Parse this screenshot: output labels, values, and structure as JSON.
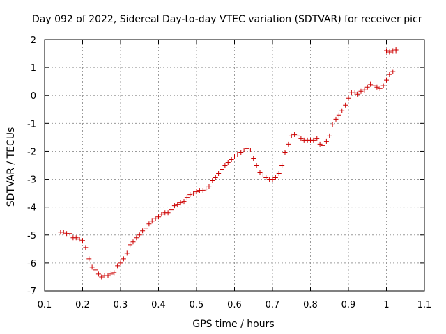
{
  "chart_data": {
    "type": "scatter",
    "title": "Day 092 of 2022, Sidereal Day-to-day VTEC variation (SDTVAR) for receiver picr",
    "xlabel": "GPS time / hours",
    "ylabel": "SDTVAR / TECUs",
    "xlim": [
      0.1,
      1.1
    ],
    "ylim": [
      -7,
      2
    ],
    "xticks": [
      "0.1",
      "0.2",
      "0.3",
      "0.4",
      "0.5",
      "0.6",
      "0.7",
      "0.8",
      "0.9",
      "1",
      "1.1"
    ],
    "yticks": [
      "2",
      "1",
      "0",
      "-1",
      "-2",
      "-3",
      "-4",
      "-5",
      "-6",
      "-7"
    ],
    "grid": true,
    "marker": "+",
    "series_color": "#cc0000",
    "x": [
      0.142,
      0.15,
      0.158,
      0.167,
      0.175,
      0.183,
      0.192,
      0.2,
      0.208,
      0.217,
      0.225,
      0.233,
      0.242,
      0.25,
      0.258,
      0.267,
      0.275,
      0.283,
      0.292,
      0.3,
      0.308,
      0.317,
      0.325,
      0.333,
      0.342,
      0.35,
      0.358,
      0.367,
      0.375,
      0.383,
      0.392,
      0.4,
      0.408,
      0.417,
      0.425,
      0.433,
      0.442,
      0.45,
      0.458,
      0.467,
      0.475,
      0.483,
      0.492,
      0.5,
      0.508,
      0.517,
      0.525,
      0.533,
      0.542,
      0.55,
      0.558,
      0.567,
      0.575,
      0.583,
      0.592,
      0.6,
      0.608,
      0.617,
      0.625,
      0.633,
      0.642,
      0.65,
      0.658,
      0.667,
      0.675,
      0.683,
      0.692,
      0.7,
      0.708,
      0.717,
      0.725,
      0.733,
      0.742,
      0.75,
      0.758,
      0.767,
      0.775,
      0.783,
      0.792,
      0.8,
      0.808,
      0.817,
      0.825,
      0.833,
      0.842,
      0.85,
      0.858,
      0.867,
      0.875,
      0.883,
      0.892,
      0.9,
      0.908,
      0.917,
      0.925,
      0.933,
      0.942,
      0.95,
      0.958,
      0.967,
      0.975,
      0.983,
      0.992,
      1.0,
      1.008,
      1.017,
      1.025,
      1.0,
      1.008,
      1.017,
      1.025
    ],
    "y": [
      -4.9,
      -4.9,
      -4.95,
      -4.95,
      -5.1,
      -5.1,
      -5.15,
      -5.2,
      -5.45,
      -5.85,
      -6.15,
      -6.25,
      -6.4,
      -6.5,
      -6.45,
      -6.45,
      -6.4,
      -6.35,
      -6.1,
      -6.0,
      -5.85,
      -5.65,
      -5.35,
      -5.25,
      -5.1,
      -5.0,
      -4.85,
      -4.75,
      -4.6,
      -4.5,
      -4.4,
      -4.35,
      -4.25,
      -4.2,
      -4.2,
      -4.1,
      -3.95,
      -3.9,
      -3.85,
      -3.8,
      -3.65,
      -3.55,
      -3.5,
      -3.45,
      -3.4,
      -3.4,
      -3.35,
      -3.25,
      -3.05,
      -2.95,
      -2.8,
      -2.65,
      -2.5,
      -2.4,
      -2.3,
      -2.2,
      -2.1,
      -2.05,
      -1.95,
      -1.9,
      -1.95,
      -2.25,
      -2.5,
      -2.75,
      -2.85,
      -2.95,
      -3.0,
      -3.0,
      -2.95,
      -2.8,
      -2.5,
      -2.05,
      -1.75,
      -1.45,
      -1.4,
      -1.45,
      -1.55,
      -1.6,
      -1.6,
      -1.6,
      -1.6,
      -1.55,
      -1.75,
      -1.8,
      -1.65,
      -1.45,
      -1.05,
      -0.85,
      -0.7,
      -0.55,
      -0.35,
      -0.1,
      0.1,
      0.1,
      0.05,
      0.15,
      0.2,
      0.3,
      0.4,
      0.35,
      0.3,
      0.25,
      0.35,
      0.55,
      0.75,
      0.85,
      1.6,
      1.6,
      1.55,
      1.6,
      1.65
    ]
  }
}
